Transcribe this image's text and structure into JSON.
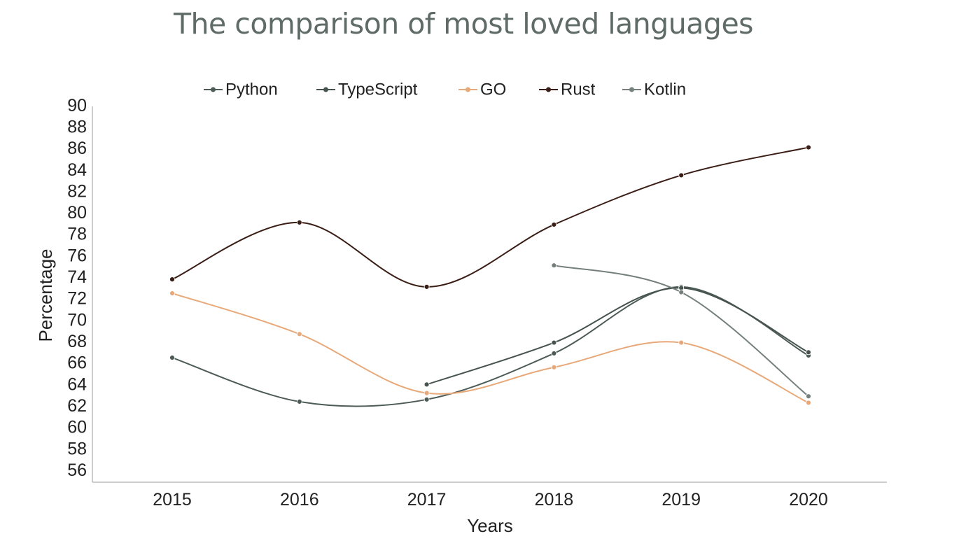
{
  "chart_data": {
    "type": "line",
    "title": "The comparison of most loved languages",
    "xlabel": "Years",
    "ylabel": "Percentage",
    "categories": [
      "2015",
      "2016",
      "2017",
      "2018",
      "2019",
      "2020"
    ],
    "ylim": [
      55,
      90
    ],
    "yticks": [
      56,
      58,
      60,
      62,
      64,
      66,
      68,
      70,
      72,
      74,
      76,
      78,
      80,
      82,
      84,
      86,
      88,
      90
    ],
    "grid": false,
    "legend_position": "top",
    "series": [
      {
        "name": "Python",
        "color": "#4d5b56",
        "values": [
          66.5,
          62.4,
          62.6,
          66.9,
          73.1,
          66.7
        ]
      },
      {
        "name": "TypeScript",
        "color": "#46534f",
        "values": [
          null,
          null,
          64.0,
          67.9,
          73.0,
          67.0
        ]
      },
      {
        "name": "GO",
        "color": "#e8a97a",
        "values": [
          72.5,
          68.7,
          63.2,
          65.6,
          67.9,
          62.3
        ]
      },
      {
        "name": "Rust",
        "color": "#3a1e16",
        "values": [
          73.8,
          79.1,
          73.1,
          78.9,
          83.5,
          86.1
        ]
      },
      {
        "name": "Kotlin",
        "color": "#75807c",
        "values": [
          null,
          null,
          null,
          75.1,
          72.6,
          62.9
        ]
      }
    ]
  }
}
